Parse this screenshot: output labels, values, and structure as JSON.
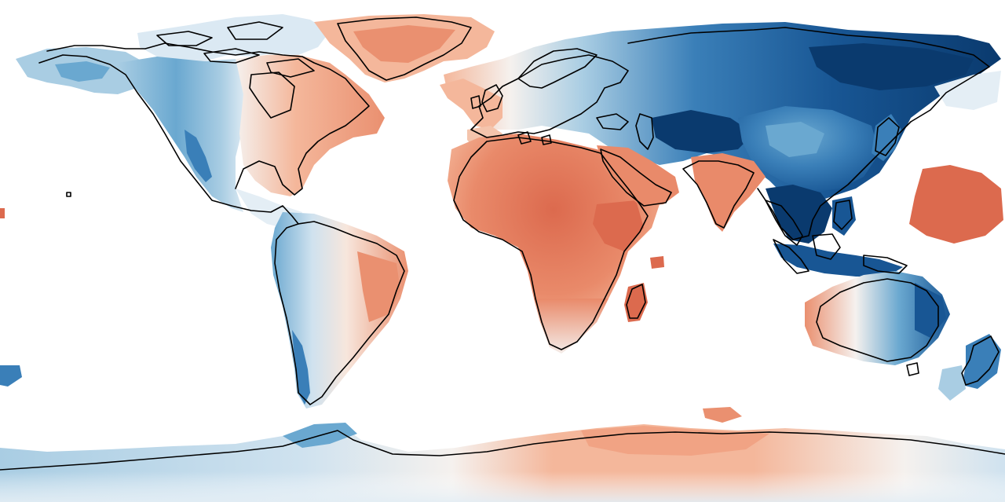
{
  "map": {
    "projection": "equirectangular",
    "extent": {
      "lon": [
        -180,
        180
      ],
      "lat": [
        -90,
        90
      ]
    },
    "colorbar": "none",
    "colormap": "RdBu",
    "palette": {
      "deep_red": "#c6422f",
      "red": "#dc6a4e",
      "salmon": "#ea9070",
      "light_salmon": "#f4b79b",
      "pale_peach": "#f9dccc",
      "neutral": "#f5f1ee",
      "pale_blue": "#d9e8f2",
      "light_blue": "#a9cde3",
      "mid_blue": "#6aa8d0",
      "blue": "#3a7fb8",
      "deep_blue": "#185694",
      "navy": "#0a3a6e",
      "ocean": "#ffffff",
      "coastline": "#000000"
    },
    "regions": [
      {
        "name": "greenland",
        "sign": "warm",
        "level": 0.45
      },
      {
        "name": "eastern-north-america",
        "sign": "warm",
        "level": 0.5
      },
      {
        "name": "western-north-america",
        "sign": "cool",
        "level": 0.5
      },
      {
        "name": "alaska",
        "sign": "cool",
        "level": 0.4
      },
      {
        "name": "south-america-east",
        "sign": "warm",
        "level": 0.45
      },
      {
        "name": "south-america-west",
        "sign": "cool",
        "level": 0.5
      },
      {
        "name": "western-europe",
        "sign": "warm",
        "level": 0.4
      },
      {
        "name": "eastern-europe",
        "sign": "cool",
        "level": 0.5
      },
      {
        "name": "africa",
        "sign": "warm",
        "level": 0.65
      },
      {
        "name": "madagascar",
        "sign": "warm",
        "level": 0.65
      },
      {
        "name": "arabia",
        "sign": "warm",
        "level": 0.6
      },
      {
        "name": "india",
        "sign": "warm",
        "level": 0.6
      },
      {
        "name": "siberia",
        "sign": "cool",
        "level": 0.95
      },
      {
        "name": "china",
        "sign": "cool",
        "level": 0.8
      },
      {
        "name": "southeast-asia",
        "sign": "cool",
        "level": 1.0
      },
      {
        "name": "pacific-patch",
        "sign": "warm",
        "level": 0.8
      },
      {
        "name": "western-australia",
        "sign": "warm",
        "level": 0.4
      },
      {
        "name": "eastern-australia",
        "sign": "cool",
        "level": 0.85
      },
      {
        "name": "new-zealand",
        "sign": "cool",
        "level": 0.8
      },
      {
        "name": "west-antarctica",
        "sign": "cool",
        "level": 0.5
      },
      {
        "name": "east-antarctica",
        "sign": "warm",
        "level": 0.5
      }
    ]
  }
}
